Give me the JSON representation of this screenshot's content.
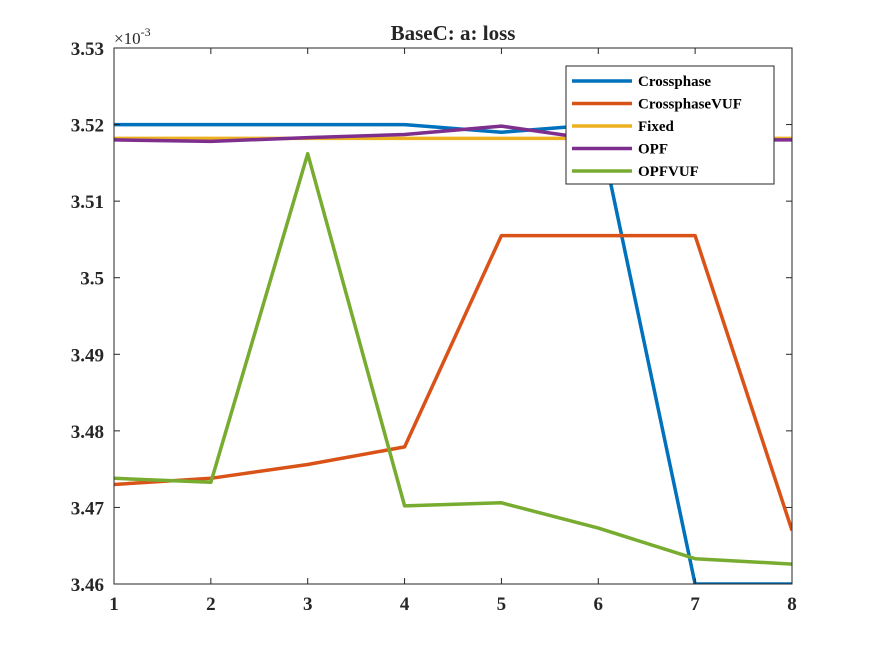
{
  "chart_data": {
    "type": "line",
    "title": "BaseC: a: loss",
    "xlabel": "",
    "ylabel": "",
    "x": [
      1,
      2,
      3,
      4,
      5,
      6,
      7,
      8
    ],
    "xlim": [
      1,
      8
    ],
    "ylim": [
      3.46,
      3.53
    ],
    "y_exponent_label": "×10",
    "y_exponent_power": "-3",
    "xticks": [
      "1",
      "2",
      "3",
      "4",
      "5",
      "6",
      "7",
      "8"
    ],
    "yticks": [
      "3.46",
      "3.47",
      "3.48",
      "3.49",
      "3.5",
      "3.51",
      "3.52",
      "3.53"
    ],
    "ytick_values": [
      3.46,
      3.47,
      3.48,
      3.49,
      3.5,
      3.51,
      3.52,
      3.53
    ],
    "grid": false,
    "legend_position": "top-right",
    "series": [
      {
        "name": "Crossphase",
        "color": "#0072BD",
        "values": [
          3.52,
          3.52,
          3.52,
          3.52,
          3.519,
          3.52,
          3.46,
          3.46
        ]
      },
      {
        "name": "CrossphaseVUF",
        "color": "#D95319",
        "values": [
          3.473,
          3.4738,
          3.4756,
          3.4779,
          3.5055,
          3.5055,
          3.5055,
          3.467
        ]
      },
      {
        "name": "Fixed",
        "color": "#EDB120",
        "values": [
          3.5182,
          3.5182,
          3.5182,
          3.5182,
          3.5182,
          3.5182,
          3.5182,
          3.5182
        ]
      },
      {
        "name": "OPF",
        "color": "#7E2F8E",
        "values": [
          3.518,
          3.5178,
          3.5183,
          3.5187,
          3.5198,
          3.518,
          3.518,
          3.518
        ]
      },
      {
        "name": "OPFVUF",
        "color": "#77AC30",
        "values": [
          3.4738,
          3.4733,
          3.5162,
          3.4702,
          3.4706,
          3.4673,
          3.4633,
          3.4626
        ]
      }
    ]
  }
}
